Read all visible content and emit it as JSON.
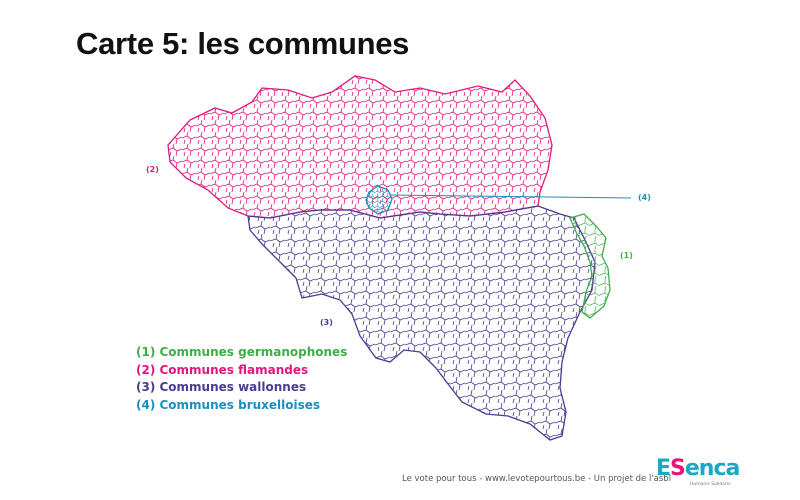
{
  "title": "Carte 5: les communes",
  "regions": [
    {
      "id": "german",
      "label": "(1)",
      "legend": "(1) Communes germanophones",
      "color": "#3fae49"
    },
    {
      "id": "flemish",
      "label": "(2)",
      "legend": "(2) Communes flamandes",
      "color": "#e0187d"
    },
    {
      "id": "walloon",
      "label": "(3)",
      "legend": "(3) Communes wallonnes",
      "color": "#4b3b91"
    },
    {
      "id": "brussels",
      "label": "(4)",
      "legend": "(4) Communes bruxelloises",
      "color": "#1b8fc0"
    }
  ],
  "footer": "Le vote pour tous - www.levotepourtous.be - Un projet de l'asbl",
  "logo": {
    "first": "E",
    "s": "S",
    "rest": "enca",
    "sub": "Humanis Solidaris"
  }
}
